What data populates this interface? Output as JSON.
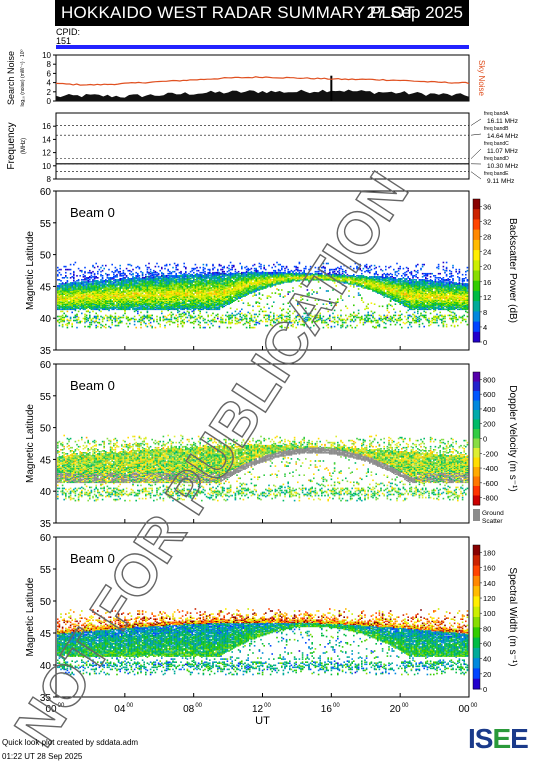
{
  "header": {
    "title": "HOKKAIDO WEST RADAR SUMMARY PLOT",
    "date": "27 Sep 2025",
    "cpid_label": "CPID:",
    "cpid_value": "151"
  },
  "footer": {
    "credit": "Quick look plot created by sddata.adm",
    "timestamp": "01:22 UT 28 Sep 2025",
    "logo": "ISEE"
  },
  "watermark": "NOT FOR PUBLICATION",
  "colors": {
    "cpid_bar": "#2222ff",
    "sky_noise": "#e05020",
    "ground_scatter": "#8c8c8c"
  },
  "chart_data": [
    {
      "type": "area",
      "id": "search-noise",
      "ylabel": "Search Noise",
      "ylabel_sub": "log₁₀ (noise) (mW⁻¹) · 10⁰",
      "ylim": [
        0,
        10
      ],
      "yticks": [
        0,
        2,
        4,
        6,
        8,
        10
      ],
      "series": [
        {
          "name": "Sky Noise",
          "x": [
            0,
            1,
            2,
            3,
            4,
            5,
            6,
            7,
            8,
            9,
            10,
            11,
            12,
            13,
            14,
            15,
            16,
            17,
            18,
            19,
            20,
            21,
            22,
            23,
            24
          ],
          "values": [
            3.8,
            3.6,
            3.5,
            3.6,
            3.8,
            4.0,
            4.2,
            4.4,
            4.6,
            4.8,
            5.0,
            5.1,
            5.2,
            5.1,
            5.0,
            4.9,
            4.8,
            4.7,
            4.7,
            4.6,
            4.5,
            4.3,
            4.1,
            4.0,
            3.9
          ]
        },
        {
          "name": "",
          "x": [
            0,
            1,
            2,
            3,
            4,
            5,
            6,
            7,
            8,
            9,
            10,
            11,
            12,
            13,
            14,
            15,
            16,
            17,
            18,
            19,
            20,
            21,
            22,
            23,
            24
          ],
          "values": [
            1.0,
            1.1,
            1.2,
            1.1,
            1.0,
            1.2,
            1.3,
            1.5,
            1.7,
            1.8,
            1.9,
            2.0,
            2.1,
            2.0,
            2.0,
            2.2,
            2.4,
            2.2,
            2.0,
            1.9,
            1.8,
            1.6,
            1.5,
            1.3,
            1.2
          ]
        }
      ],
      "spike": {
        "x": 16,
        "value": 5.5
      }
    },
    {
      "type": "line",
      "id": "frequency",
      "ylabel": "Frequency",
      "ylabel_unit": "(MHz)",
      "ylim": [
        8,
        18
      ],
      "yticks": [
        8,
        10,
        12,
        14,
        16
      ],
      "bands": [
        {
          "name": "freq bandA",
          "label": "16.11 MHz",
          "value": 16.11
        },
        {
          "name": "freq bandB",
          "label": "14.64 MHz",
          "value": 14.64
        },
        {
          "name": "freq bandC",
          "label": "11.07 MHz",
          "value": 11.07
        },
        {
          "name": "freq bandD",
          "label": "10.30 MHz",
          "value": 10.3
        },
        {
          "name": "freq bandE",
          "label": "9.11 MHz",
          "value": 9.11
        }
      ],
      "operating": 10.3
    },
    {
      "type": "heatmap",
      "id": "power",
      "beam": "Beam  0",
      "ylabel": "Magnetic Latitude",
      "ylim": [
        35,
        60
      ],
      "yticks": [
        35,
        40,
        45,
        50,
        55,
        60
      ],
      "colorbar": {
        "label": "Backscatter Power (dB)",
        "ticks": [
          "0",
          "4",
          "8",
          "12",
          "16",
          "20",
          "24",
          "28",
          "32",
          "36"
        ],
        "range": [
          0,
          38
        ]
      },
      "ground_scatter": false
    },
    {
      "type": "heatmap",
      "id": "velocity",
      "beam": "Beam  0",
      "ylabel": "Magnetic Latitude",
      "ylim": [
        35,
        60
      ],
      "yticks": [
        35,
        40,
        45,
        50,
        55,
        60
      ],
      "colorbar": {
        "label": "Doppler Velocity (m s⁻¹)",
        "ticks": [
          "-800",
          "-600",
          "-400",
          "-200",
          "0",
          "200",
          "400",
          "600",
          "800"
        ],
        "range": [
          -900,
          900
        ]
      },
      "ground_scatter": true,
      "gs_label": "Ground Scatter"
    },
    {
      "type": "heatmap",
      "id": "width",
      "beam": "Beam  0",
      "ylabel": "Magnetic Latitude",
      "ylim": [
        35,
        60
      ],
      "yticks": [
        35,
        40,
        45,
        50,
        55,
        60
      ],
      "colorbar": {
        "label": "Spectral Width (m s⁻¹)",
        "ticks": [
          "0",
          "20",
          "40",
          "60",
          "80",
          "100",
          "120",
          "140",
          "160",
          "180"
        ],
        "range": [
          0,
          190
        ]
      },
      "ground_scatter": false
    }
  ],
  "time_axis": {
    "xlabel": "UT",
    "ticks": [
      {
        "h": 0,
        "label": "00"
      },
      {
        "h": 4,
        "label": "04"
      },
      {
        "h": 8,
        "label": "08"
      },
      {
        "h": 12,
        "label": "12"
      },
      {
        "h": 16,
        "label": "16"
      },
      {
        "h": 20,
        "label": "20"
      },
      {
        "h": 24,
        "label": "00"
      }
    ],
    "minute_label": "00"
  }
}
